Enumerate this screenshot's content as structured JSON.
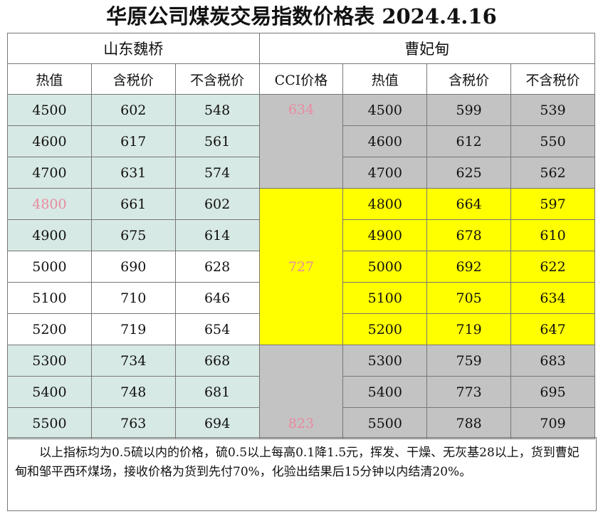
{
  "title": "华原公司煤炭交易指数价格表 2024.4.16",
  "table": {
    "groups": [
      "山东魏桥",
      "曹妃甸"
    ],
    "columns": [
      "热值",
      "含税价",
      "不含税价",
      "CCI价格",
      "热值",
      "含税价",
      "不含税价"
    ],
    "rows": [
      {
        "shandong": [
          4500,
          602,
          548
        ],
        "caofeidian": [
          4500,
          599,
          539
        ]
      },
      {
        "shandong": [
          4600,
          617,
          561
        ],
        "caofeidian": [
          4600,
          612,
          550
        ]
      },
      {
        "shandong": [
          4700,
          631,
          574
        ],
        "caofeidian": [
          4700,
          625,
          562
        ]
      },
      {
        "shandong": [
          4800,
          661,
          602
        ],
        "caofeidian": [
          4800,
          664,
          597
        ]
      },
      {
        "shandong": [
          4900,
          675,
          614
        ],
        "caofeidian": [
          4900,
          678,
          610
        ]
      },
      {
        "shandong": [
          5000,
          690,
          628
        ],
        "caofeidian": [
          5000,
          692,
          622
        ]
      },
      {
        "shandong": [
          5100,
          710,
          646
        ],
        "caofeidian": [
          5100,
          705,
          634
        ]
      },
      {
        "shandong": [
          5200,
          719,
          654
        ],
        "caofeidian": [
          5200,
          719,
          647
        ]
      },
      {
        "shandong": [
          5300,
          734,
          668
        ],
        "caofeidian": [
          5300,
          759,
          683
        ]
      },
      {
        "shandong": [
          5400,
          748,
          681
        ],
        "caofeidian": [
          5400,
          773,
          695
        ]
      },
      {
        "shandong": [
          5500,
          763,
          694
        ],
        "caofeidian": [
          5500,
          788,
          709
        ]
      }
    ],
    "cci": [
      634,
      727,
      823
    ]
  },
  "note": "以上指标均为0.5硫以内的价格，硫0.5以上每高0.1降1.5元，挥发、干燥、无灰基28以上，货到曹妃甸和邹平西环煤场，接收价格为货到先付70%，化验出结果后15分钟以内结清20%。"
}
